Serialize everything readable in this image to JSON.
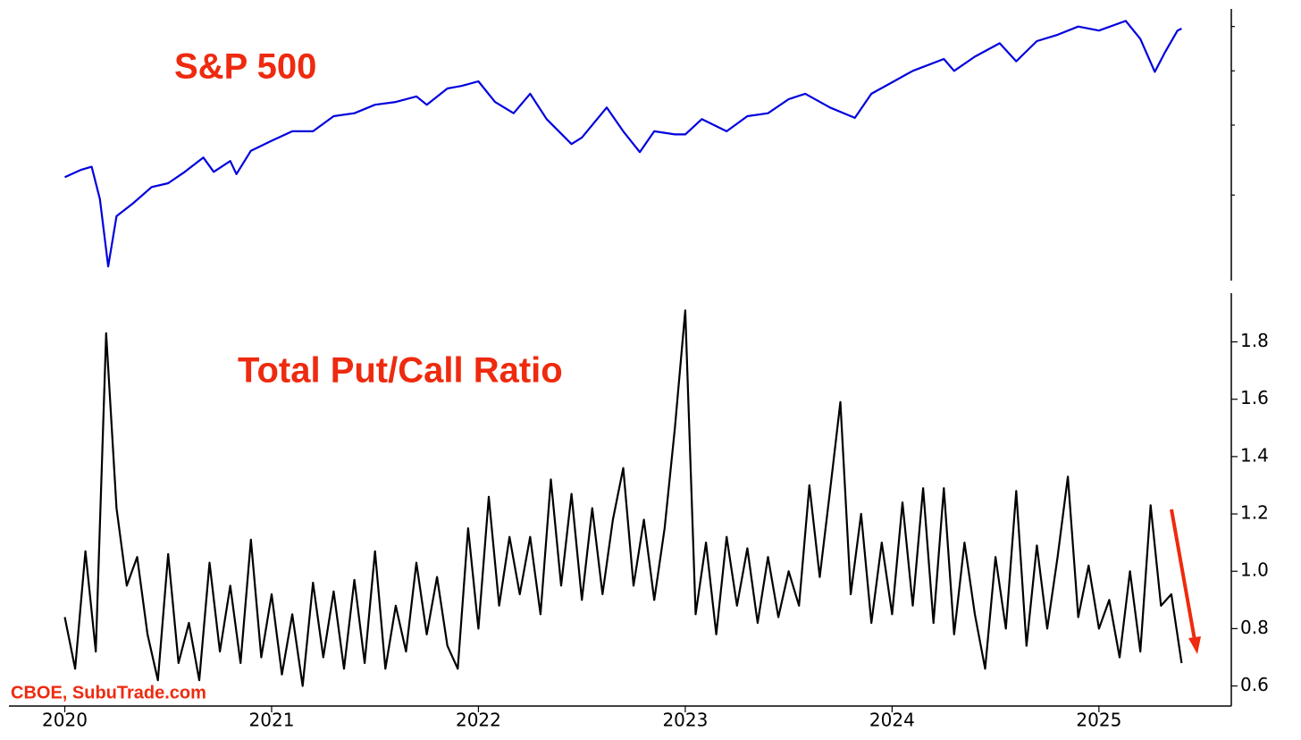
{
  "chart_data": [
    {
      "type": "line",
      "title": "S&P 500",
      "log_y": true,
      "ytick_labels": false,
      "xlim": [
        2019.73,
        2025.64
      ],
      "ylim": [
        2110,
        6450
      ],
      "yticks": [
        3000,
        4000,
        5000,
        6000
      ],
      "x": [
        2020.0,
        2020.08,
        2020.13,
        2020.17,
        2020.21,
        2020.25,
        2020.33,
        2020.42,
        2020.5,
        2020.58,
        2020.67,
        2020.72,
        2020.8,
        2020.83,
        2020.9,
        2021.0,
        2021.1,
        2021.2,
        2021.3,
        2021.4,
        2021.5,
        2021.6,
        2021.7,
        2021.75,
        2021.85,
        2021.92,
        2022.0,
        2022.08,
        2022.17,
        2022.25,
        2022.33,
        2022.45,
        2022.5,
        2022.62,
        2022.7,
        2022.78,
        2022.85,
        2022.95,
        2023.0,
        2023.08,
        2023.2,
        2023.3,
        2023.4,
        2023.5,
        2023.58,
        2023.7,
        2023.82,
        2023.9,
        2024.0,
        2024.1,
        2024.25,
        2024.3,
        2024.4,
        2024.52,
        2024.6,
        2024.7,
        2024.8,
        2024.9,
        2025.0,
        2025.13,
        2025.2,
        2025.27,
        2025.32,
        2025.38,
        2025.4
      ],
      "series": [
        {
          "name": "S&P 500",
          "color": "#0000dd",
          "values": [
            3230,
            3330,
            3370,
            2950,
            2237,
            2750,
            2900,
            3100,
            3150,
            3300,
            3500,
            3300,
            3450,
            3270,
            3600,
            3750,
            3900,
            3900,
            4150,
            4200,
            4350,
            4400,
            4500,
            4350,
            4650,
            4700,
            4790,
            4400,
            4200,
            4550,
            4100,
            3700,
            3800,
            4300,
            3900,
            3580,
            3900,
            3850,
            3850,
            4100,
            3900,
            4150,
            4200,
            4450,
            4550,
            4300,
            4120,
            4550,
            4770,
            5000,
            5250,
            5000,
            5300,
            5600,
            5200,
            5650,
            5800,
            6000,
            5900,
            6140,
            5700,
            4980,
            5400,
            5900,
            5950
          ]
        }
      ]
    },
    {
      "type": "line",
      "title": "Total Put/Call Ratio",
      "source": "CBOE, SubuTrade.com",
      "xlim": [
        2019.73,
        2025.64
      ],
      "xticks": [
        2020,
        2021,
        2022,
        2023,
        2024,
        2025
      ],
      "ylim": [
        0.53,
        1.97
      ],
      "yticks": [
        {
          "value": 0.6,
          "label": "0.6"
        },
        {
          "value": 0.8,
          "label": "0.8"
        },
        {
          "value": 1.0,
          "label": "1.0"
        },
        {
          "value": 1.2,
          "label": "1.2"
        },
        {
          "value": 1.4,
          "label": "1.4"
        },
        {
          "value": 1.6,
          "label": "1.6"
        },
        {
          "value": 1.8,
          "label": "1.8"
        }
      ],
      "x": [
        2020.0,
        2020.05,
        2020.1,
        2020.15,
        2020.2,
        2020.25,
        2020.3,
        2020.35,
        2020.4,
        2020.45,
        2020.5,
        2020.55,
        2020.6,
        2020.65,
        2020.7,
        2020.75,
        2020.8,
        2020.85,
        2020.9,
        2020.95,
        2021.0,
        2021.05,
        2021.1,
        2021.15,
        2021.2,
        2021.25,
        2021.3,
        2021.35,
        2021.4,
        2021.45,
        2021.5,
        2021.55,
        2021.6,
        2021.65,
        2021.7,
        2021.75,
        2021.8,
        2021.85,
        2021.9,
        2021.95,
        2022.0,
        2022.05,
        2022.1,
        2022.15,
        2022.2,
        2022.25,
        2022.3,
        2022.35,
        2022.4,
        2022.45,
        2022.5,
        2022.55,
        2022.6,
        2022.65,
        2022.7,
        2022.75,
        2022.8,
        2022.85,
        2022.9,
        2022.95,
        2023.0,
        2023.05,
        2023.1,
        2023.15,
        2023.2,
        2023.25,
        2023.3,
        2023.35,
        2023.4,
        2023.45,
        2023.5,
        2023.55,
        2023.6,
        2023.65,
        2023.7,
        2023.75,
        2023.8,
        2023.85,
        2023.9,
        2023.95,
        2024.0,
        2024.05,
        2024.1,
        2024.15,
        2024.2,
        2024.25,
        2024.3,
        2024.35,
        2024.4,
        2024.45,
        2024.5,
        2024.55,
        2024.6,
        2024.65,
        2024.7,
        2024.75,
        2024.8,
        2024.85,
        2024.9,
        2024.95,
        2025.0,
        2025.05,
        2025.1,
        2025.15,
        2025.2,
        2025.25,
        2025.3,
        2025.35,
        2025.4
      ],
      "series": [
        {
          "name": "Total Put/Call Ratio",
          "color": "#000000",
          "values": [
            0.84,
            0.66,
            1.07,
            0.72,
            1.83,
            1.22,
            0.95,
            1.05,
            0.78,
            0.62,
            1.06,
            0.68,
            0.82,
            0.62,
            1.03,
            0.72,
            0.95,
            0.68,
            1.11,
            0.7,
            0.92,
            0.64,
            0.85,
            0.6,
            0.96,
            0.7,
            0.93,
            0.66,
            0.97,
            0.68,
            1.07,
            0.66,
            0.88,
            0.72,
            1.03,
            0.78,
            0.98,
            0.74,
            0.66,
            1.15,
            0.8,
            1.26,
            0.88,
            1.12,
            0.92,
            1.12,
            0.85,
            1.32,
            0.95,
            1.27,
            0.9,
            1.22,
            0.92,
            1.18,
            1.36,
            0.95,
            1.18,
            0.9,
            1.15,
            1.5,
            1.91,
            0.85,
            1.1,
            0.78,
            1.12,
            0.88,
            1.08,
            0.82,
            1.05,
            0.84,
            1.0,
            0.88,
            1.3,
            0.98,
            1.28,
            1.59,
            0.92,
            1.2,
            0.82,
            1.1,
            0.85,
            1.24,
            0.88,
            1.29,
            0.82,
            1.29,
            0.78,
            1.1,
            0.85,
            0.66,
            1.05,
            0.8,
            1.28,
            0.74,
            1.09,
            0.8,
            1.05,
            1.33,
            0.84,
            1.02,
            0.8,
            0.9,
            0.7,
            1.0,
            0.72,
            1.23,
            0.88,
            0.92,
            0.68
          ]
        }
      ]
    }
  ]
}
